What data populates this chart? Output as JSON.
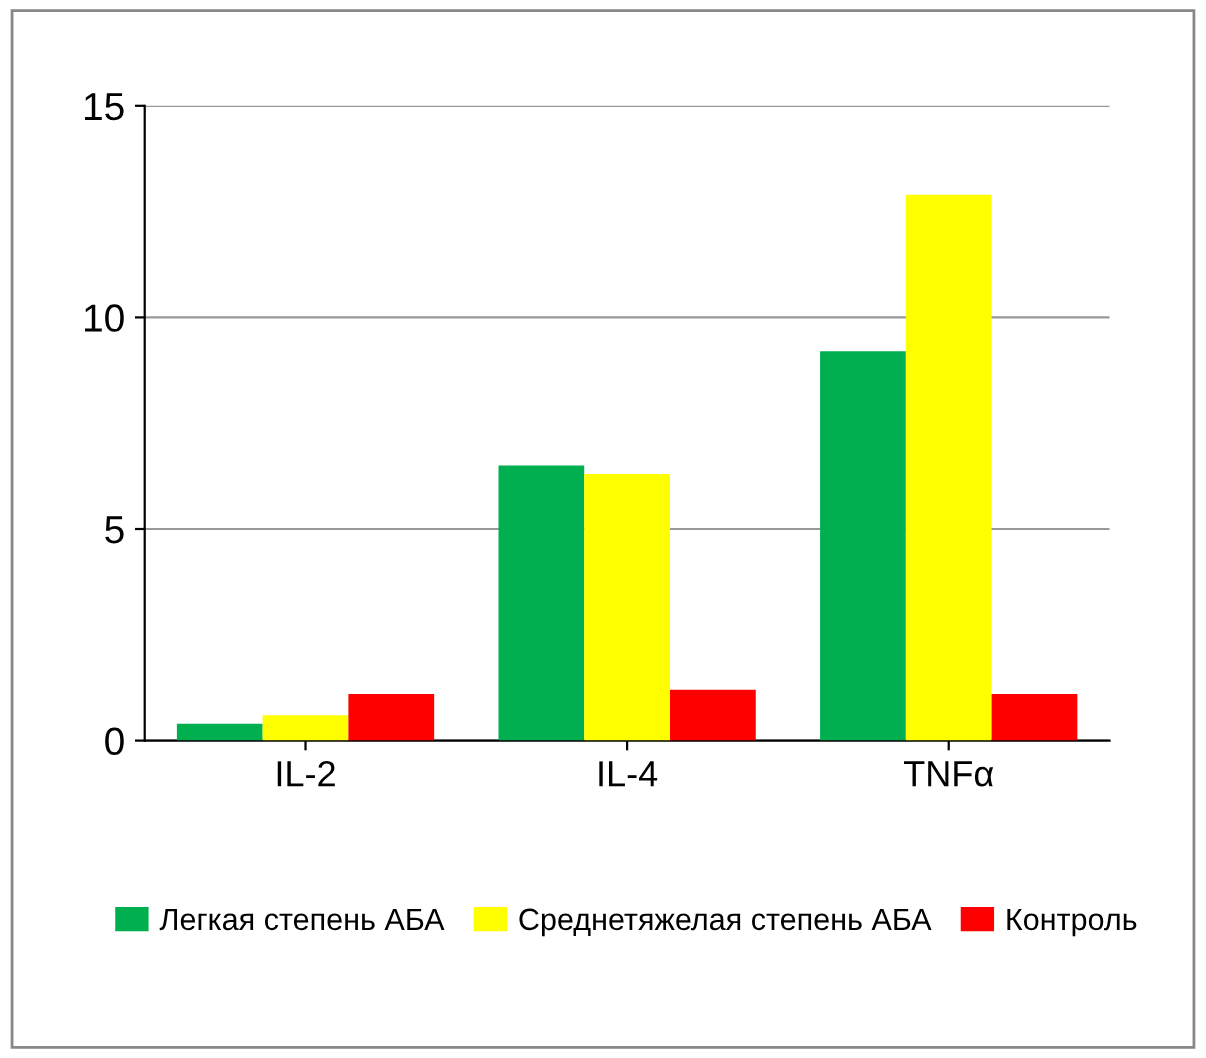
{
  "chart_data": {
    "type": "bar",
    "categories": [
      "IL-2",
      "IL-4",
      "TNFα"
    ],
    "series": [
      {
        "name": "Легкая степень АБА",
        "color": "#00b050",
        "values": [
          0.4,
          6.5,
          9.2
        ]
      },
      {
        "name": "Среднетяжелая степень АБА",
        "color": "#ffff00",
        "values": [
          0.6,
          6.3,
          12.9
        ]
      },
      {
        "name": "Контроль",
        "color": "#ff0000",
        "values": [
          1.1,
          1.2,
          1.1
        ]
      }
    ],
    "ylim": [
      0,
      15
    ],
    "yticks": [
      0,
      5,
      10,
      15
    ],
    "grid": "y",
    "legend": "bottom"
  }
}
